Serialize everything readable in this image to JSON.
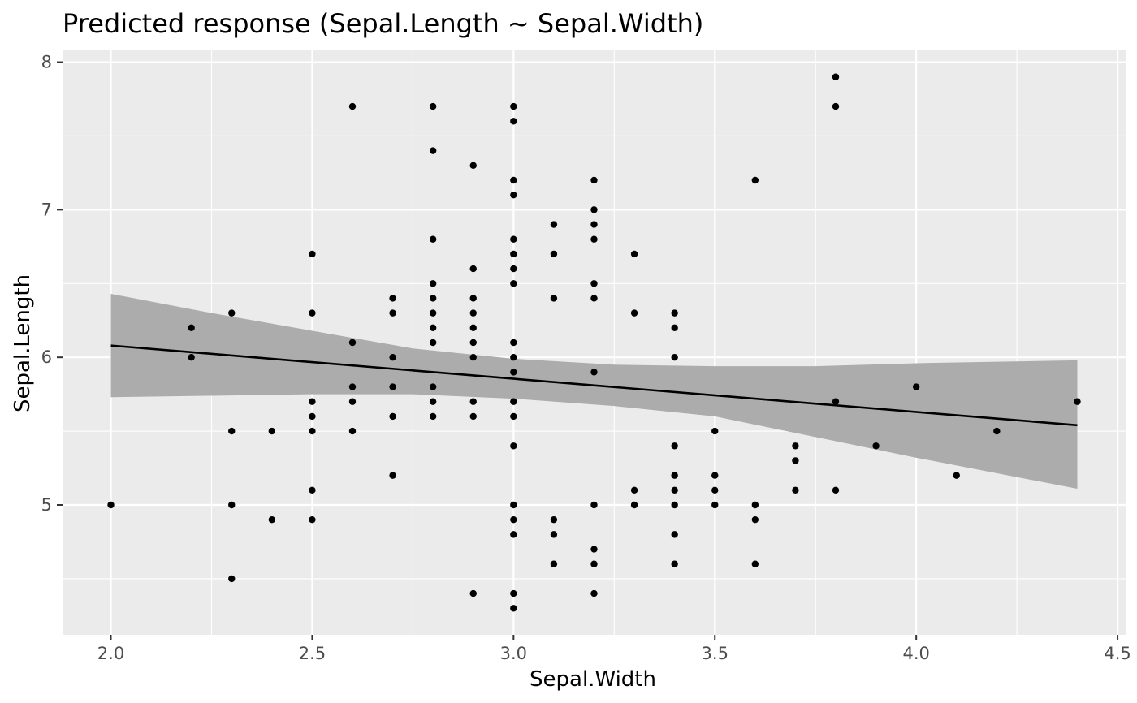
{
  "chart_data": {
    "type": "scatter",
    "title": "Predicted response (Sepal.Length ~ Sepal.Width)",
    "xlabel": "Sepal.Width",
    "ylabel": "Sepal.Length",
    "xlim": [
      1.88,
      4.52
    ],
    "ylim": [
      4.12,
      8.08
    ],
    "x_ticks": [
      2.0,
      2.5,
      3.0,
      3.5,
      4.0,
      4.5
    ],
    "x_tick_labels": [
      "2.0",
      "2.5",
      "3.0",
      "3.5",
      "4.0",
      "4.5"
    ],
    "y_ticks": [
      5,
      6,
      7,
      8
    ],
    "y_tick_labels": [
      "5",
      "6",
      "7",
      "8"
    ],
    "grid": true,
    "colors": {
      "panel_background": "#ebebeb",
      "grid_line": "#ffffff",
      "point": "#000000",
      "fit_line": "#000000",
      "ribbon": "#acacac"
    },
    "fit": {
      "x": [
        2.0,
        4.4
      ],
      "y": [
        6.08,
        5.54
      ]
    },
    "ribbon": {
      "x": [
        2.0,
        2.25,
        2.5,
        2.75,
        3.0,
        3.25,
        3.5,
        3.75,
        4.0,
        4.4
      ],
      "lower": [
        5.73,
        5.74,
        5.75,
        5.75,
        5.72,
        5.67,
        5.6,
        5.46,
        5.32,
        5.11
      ],
      "upper": [
        6.43,
        6.3,
        6.18,
        6.06,
        5.99,
        5.95,
        5.94,
        5.94,
        5.96,
        5.98
      ]
    },
    "points": [
      [
        2.0,
        5.0
      ],
      [
        2.2,
        6.2
      ],
      [
        2.2,
        6.0
      ],
      [
        2.3,
        6.3
      ],
      [
        2.3,
        5.5
      ],
      [
        2.3,
        5.0
      ],
      [
        2.3,
        4.5
      ],
      [
        2.4,
        5.5
      ],
      [
        2.4,
        4.9
      ],
      [
        2.5,
        6.7
      ],
      [
        2.5,
        6.3
      ],
      [
        2.5,
        5.7
      ],
      [
        2.5,
        5.6
      ],
      [
        2.5,
        5.5
      ],
      [
        2.5,
        5.1
      ],
      [
        2.5,
        4.9
      ],
      [
        2.6,
        7.7
      ],
      [
        2.6,
        6.1
      ],
      [
        2.6,
        5.8
      ],
      [
        2.6,
        5.7
      ],
      [
        2.6,
        5.5
      ],
      [
        2.7,
        6.4
      ],
      [
        2.7,
        6.3
      ],
      [
        2.7,
        6.0
      ],
      [
        2.7,
        5.8
      ],
      [
        2.7,
        5.6
      ],
      [
        2.7,
        5.2
      ],
      [
        2.8,
        7.7
      ],
      [
        2.8,
        7.4
      ],
      [
        2.8,
        6.8
      ],
      [
        2.8,
        6.5
      ],
      [
        2.8,
        6.4
      ],
      [
        2.8,
        6.3
      ],
      [
        2.8,
        6.2
      ],
      [
        2.8,
        6.1
      ],
      [
        2.8,
        5.8
      ],
      [
        2.8,
        5.7
      ],
      [
        2.8,
        5.6
      ],
      [
        2.9,
        7.3
      ],
      [
        2.9,
        6.6
      ],
      [
        2.9,
        6.4
      ],
      [
        2.9,
        6.3
      ],
      [
        2.9,
        6.2
      ],
      [
        2.9,
        6.1
      ],
      [
        2.9,
        6.0
      ],
      [
        2.9,
        5.7
      ],
      [
        2.9,
        5.6
      ],
      [
        2.9,
        4.4
      ],
      [
        3.0,
        7.7
      ],
      [
        3.0,
        7.6
      ],
      [
        3.0,
        7.2
      ],
      [
        3.0,
        7.1
      ],
      [
        3.0,
        6.8
      ],
      [
        3.0,
        6.7
      ],
      [
        3.0,
        6.6
      ],
      [
        3.0,
        6.5
      ],
      [
        3.0,
        6.1
      ],
      [
        3.0,
        6.0
      ],
      [
        3.0,
        5.9
      ],
      [
        3.0,
        5.7
      ],
      [
        3.0,
        5.6
      ],
      [
        3.0,
        5.4
      ],
      [
        3.0,
        5.0
      ],
      [
        3.0,
        4.9
      ],
      [
        3.0,
        4.8
      ],
      [
        3.0,
        4.4
      ],
      [
        3.0,
        4.3
      ],
      [
        3.1,
        6.9
      ],
      [
        3.1,
        6.7
      ],
      [
        3.1,
        6.4
      ],
      [
        3.1,
        4.9
      ],
      [
        3.1,
        4.8
      ],
      [
        3.1,
        4.6
      ],
      [
        3.2,
        7.2
      ],
      [
        3.2,
        7.0
      ],
      [
        3.2,
        6.9
      ],
      [
        3.2,
        6.8
      ],
      [
        3.2,
        6.5
      ],
      [
        3.2,
        6.4
      ],
      [
        3.2,
        5.9
      ],
      [
        3.2,
        5.0
      ],
      [
        3.2,
        4.7
      ],
      [
        3.2,
        4.6
      ],
      [
        3.2,
        4.4
      ],
      [
        3.3,
        6.7
      ],
      [
        3.3,
        6.3
      ],
      [
        3.3,
        5.1
      ],
      [
        3.3,
        5.0
      ],
      [
        3.4,
        6.3
      ],
      [
        3.4,
        6.2
      ],
      [
        3.4,
        6.0
      ],
      [
        3.4,
        5.4
      ],
      [
        3.4,
        5.2
      ],
      [
        3.4,
        5.1
      ],
      [
        3.4,
        5.0
      ],
      [
        3.4,
        4.8
      ],
      [
        3.4,
        4.6
      ],
      [
        3.5,
        5.5
      ],
      [
        3.5,
        5.2
      ],
      [
        3.5,
        5.1
      ],
      [
        3.5,
        5.0
      ],
      [
        3.6,
        7.2
      ],
      [
        3.6,
        5.0
      ],
      [
        3.6,
        4.9
      ],
      [
        3.6,
        4.6
      ],
      [
        3.7,
        5.4
      ],
      [
        3.7,
        5.3
      ],
      [
        3.7,
        5.1
      ],
      [
        3.8,
        7.9
      ],
      [
        3.8,
        7.7
      ],
      [
        3.8,
        5.7
      ],
      [
        3.8,
        5.1
      ],
      [
        3.9,
        5.4
      ],
      [
        4.0,
        5.8
      ],
      [
        4.1,
        5.2
      ],
      [
        4.2,
        5.5
      ],
      [
        4.4,
        5.7
      ]
    ]
  }
}
